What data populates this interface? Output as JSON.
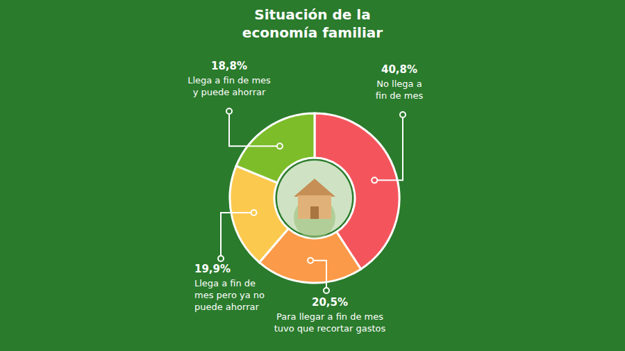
{
  "chart_data": {
    "type": "pie",
    "title": "Situación de la economía familiar",
    "categories": [
      "No llega a fin de mes",
      "Para llegar a fin de mes tuvo que recortar gastos",
      "Llega a fin de mes pero ya no puede ahorrar",
      "Llega a fin de mes y puede ahorrar"
    ],
    "values": [
      40.8,
      20.5,
      19.9,
      18.8
    ],
    "value_labels": [
      "40,8%",
      "20,5%",
      "19,9%",
      "18,8%"
    ],
    "colors": [
      "#f4555d",
      "#fb9a48",
      "#fbc94e",
      "#7dbd2a"
    ],
    "data_labels": true
  }
}
